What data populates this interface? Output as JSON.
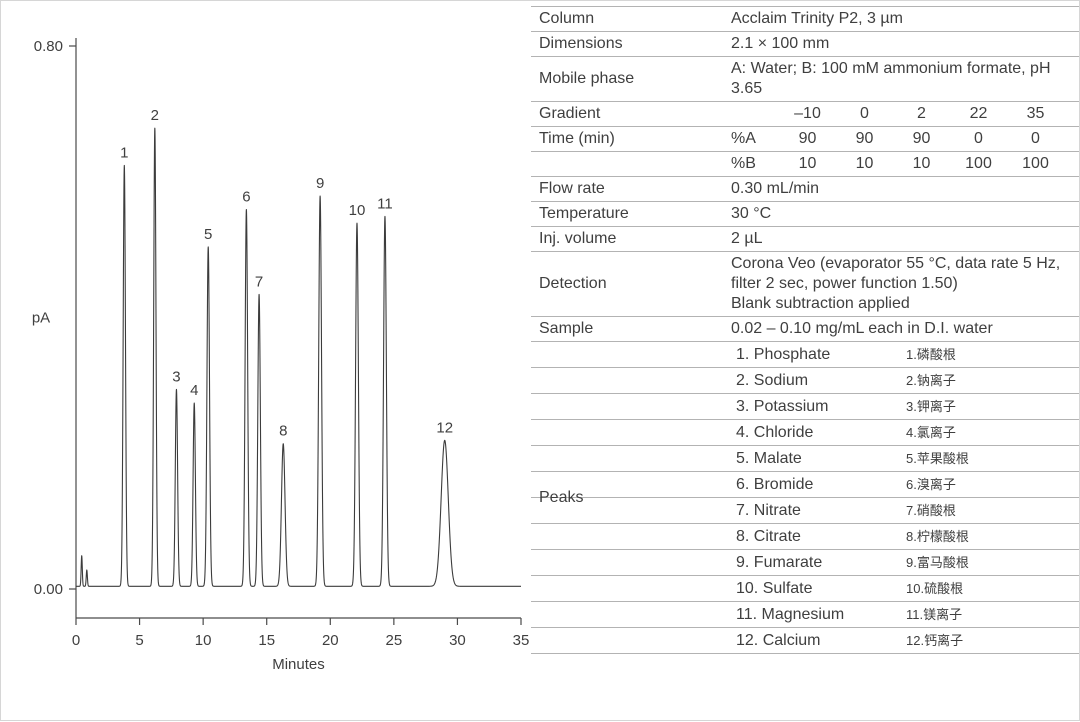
{
  "chart_data": {
    "type": "line",
    "title": "",
    "xlabel": "Minutes",
    "ylabel": "pA",
    "xlim": [
      0,
      35
    ],
    "ylim": [
      0.0,
      0.8
    ],
    "x_ticks": [
      0,
      5,
      10,
      15,
      20,
      25,
      30,
      35
    ],
    "y_ticks": [
      0.0,
      0.8
    ],
    "y_tick_labels": [
      "0.00",
      "0.80"
    ],
    "grid": false,
    "legend": "none",
    "baseline": 0.004,
    "injection_blips": [
      {
        "x": 0.45,
        "height": 0.045,
        "sigma": 0.045
      },
      {
        "x": 0.85,
        "height": 0.024,
        "sigma": 0.045
      }
    ],
    "peaks": [
      {
        "num": 1,
        "name": "Phosphate",
        "time": 3.8,
        "height": 0.62,
        "sigma": 0.09
      },
      {
        "num": 2,
        "name": "Sodium",
        "time": 6.2,
        "height": 0.675,
        "sigma": 0.09
      },
      {
        "num": 3,
        "name": "Potassium",
        "time": 7.9,
        "height": 0.29,
        "sigma": 0.09
      },
      {
        "num": 4,
        "name": "Chloride",
        "time": 9.3,
        "height": 0.27,
        "sigma": 0.09
      },
      {
        "num": 5,
        "name": "Malate",
        "time": 10.4,
        "height": 0.5,
        "sigma": 0.1
      },
      {
        "num": 6,
        "name": "Bromide",
        "time": 13.4,
        "height": 0.555,
        "sigma": 0.1
      },
      {
        "num": 7,
        "name": "Nitrate",
        "time": 14.4,
        "height": 0.43,
        "sigma": 0.1
      },
      {
        "num": 8,
        "name": "Citrate",
        "time": 16.3,
        "height": 0.21,
        "sigma": 0.14
      },
      {
        "num": 9,
        "name": "Fumarate",
        "time": 19.2,
        "height": 0.575,
        "sigma": 0.11
      },
      {
        "num": 10,
        "name": "Sulfate",
        "time": 22.1,
        "height": 0.535,
        "sigma": 0.11
      },
      {
        "num": 11,
        "name": "Magnesium",
        "time": 24.3,
        "height": 0.545,
        "sigma": 0.11
      },
      {
        "num": 12,
        "name": "Calcium",
        "time": 29.0,
        "height": 0.215,
        "sigma": 0.28
      }
    ]
  },
  "method_table": {
    "rows": [
      {
        "type": "kv",
        "label": "Column",
        "value": "Acclaim Trinity P2, 3 µm"
      },
      {
        "type": "kv",
        "label": "Dimensions",
        "value": "2.1 × 100 mm"
      },
      {
        "type": "kv",
        "label": "Mobile phase",
        "value": "A: Water; B: 100 mM ammonium formate, pH 3.65"
      },
      {
        "type": "gradient",
        "rows": [
          {
            "label": "Gradient",
            "cells": [
              "",
              "–10",
              "0",
              "2",
              "22",
              "35"
            ]
          },
          {
            "label": "Time (min)",
            "cells": [
              "%A",
              "90",
              "90",
              "90",
              "0",
              "0"
            ]
          },
          {
            "label": "",
            "cells": [
              "%B",
              "10",
              "10",
              "10",
              "100",
              "100"
            ]
          }
        ]
      },
      {
        "type": "kv",
        "label": "Flow rate",
        "value": "0.30 mL/min"
      },
      {
        "type": "kv",
        "label": "Temperature",
        "value": "30 °C"
      },
      {
        "type": "kv",
        "label": "Inj. volume",
        "value": "2 µL"
      },
      {
        "type": "kv",
        "label": "Detection",
        "value": "Corona Veo (evaporator 55 °C, data rate 5 Hz, filter 2 sec, power function 1.50)\nBlank subtraction applied"
      },
      {
        "type": "kv",
        "label": "Sample",
        "value": "0.02 – 0.10 mg/mL each in D.I. water"
      },
      {
        "type": "peaks",
        "label": "Peaks",
        "items": [
          {
            "en": "1. Phosphate",
            "zh": "1.磷酸根"
          },
          {
            "en": "2. Sodium",
            "zh": "2.钠离子"
          },
          {
            "en": "3. Potassium",
            "zh": "3.钾离子"
          },
          {
            "en": "4. Chloride",
            "zh": "4.氯离子"
          },
          {
            "en": "5. Malate",
            "zh": "5.苹果酸根"
          },
          {
            "en": "6. Bromide",
            "zh": "6.溴离子"
          },
          {
            "en": "7. Nitrate",
            "zh": "7.硝酸根"
          },
          {
            "en": "8. Citrate",
            "zh": "8.柠檬酸根"
          },
          {
            "en": "9. Fumarate",
            "zh": "9.富马酸根"
          },
          {
            "en": "10. Sulfate",
            "zh": "10.硫酸根"
          },
          {
            "en": "11. Magnesium",
            "zh": "11.镁离子"
          },
          {
            "en": "12. Calcium",
            "zh": "12.钙离子"
          }
        ]
      }
    ]
  }
}
